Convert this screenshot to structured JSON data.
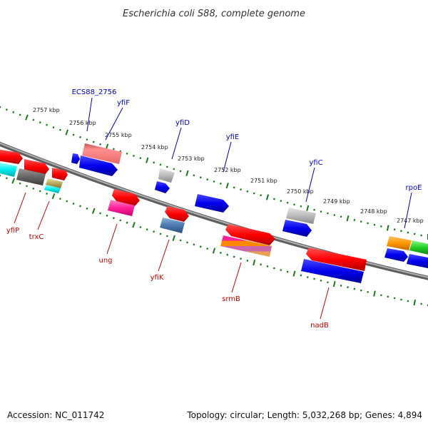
{
  "title": "Escherichia coli S88, complete genome",
  "footer": {
    "accession": "Accession: NC_011742",
    "summary": "Topology: circular; Length: 5,032,268 bp; Genes: 4,894"
  },
  "colors": {
    "backbone": "#8a8a8a",
    "tick": "#1a7a1a",
    "label_top": "#0000cc",
    "label_bottom": "#cc0000"
  },
  "kbp_labels": [
    "2757 kbp",
    "2756 kbp",
    "2755 kbp",
    "2754 kbp",
    "2753 kbp",
    "2752 kbp",
    "2751 kbp",
    "2750 kbp",
    "2749 kbp",
    "2748 kbp",
    "2747 kbp"
  ],
  "gene_labels_top": [
    "ECS88_2756",
    "yfiF",
    "yfiD",
    "yfiE",
    "yfiC",
    "rpoE"
  ],
  "gene_labels_bottom": [
    "yfiP",
    "trxC",
    "ung",
    "yfiK",
    "srmB",
    "nadB"
  ]
}
